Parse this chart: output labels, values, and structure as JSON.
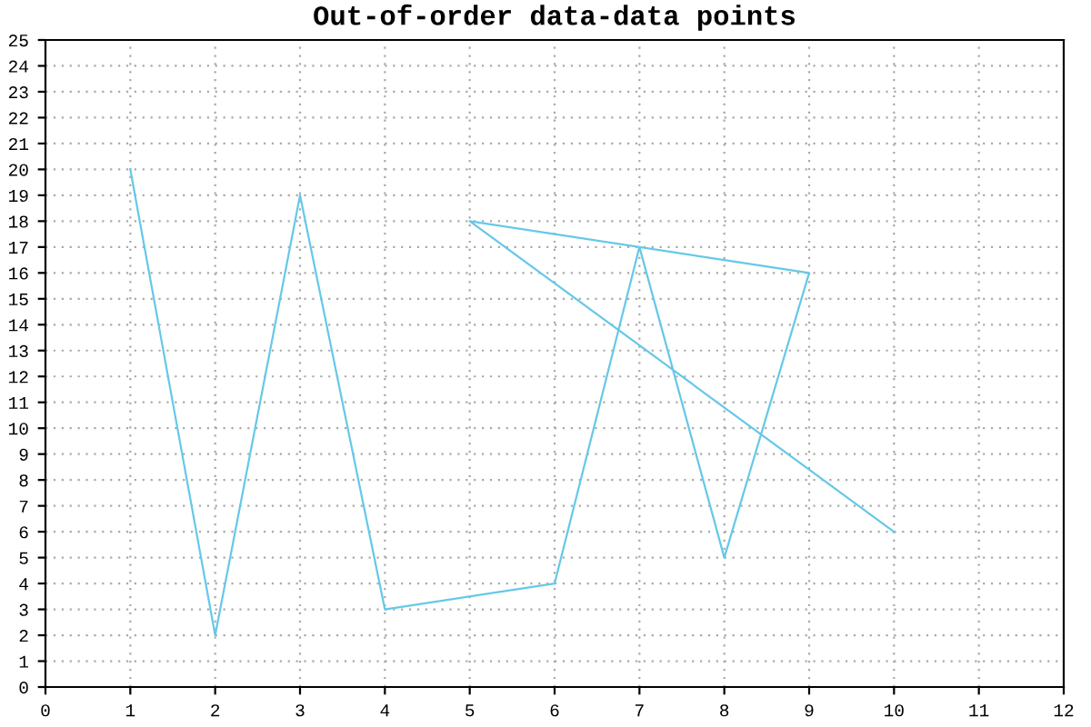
{
  "chart_data": {
    "type": "line",
    "title": "Out-of-order data-data points",
    "x": [
      1,
      2,
      3,
      4,
      6,
      7,
      8,
      9,
      5,
      10
    ],
    "series": [
      {
        "color": "#66c8e8",
        "values": [
          20,
          2,
          19,
          3,
          4,
          17,
          5,
          16,
          18,
          6
        ]
      }
    ],
    "xlim": [
      0,
      12
    ],
    "xticks": [
      0,
      1,
      2,
      3,
      4,
      5,
      6,
      7,
      8,
      9,
      10,
      11,
      12
    ],
    "ylim": [
      0,
      25
    ],
    "yticks": [
      0,
      1,
      2,
      3,
      4,
      5,
      6,
      7,
      8,
      9,
      10,
      11,
      12,
      13,
      14,
      15,
      16,
      17,
      18,
      19,
      20,
      21,
      22,
      23,
      24,
      25
    ],
    "grid": true,
    "marker": "none",
    "line_style": "solid"
  }
}
